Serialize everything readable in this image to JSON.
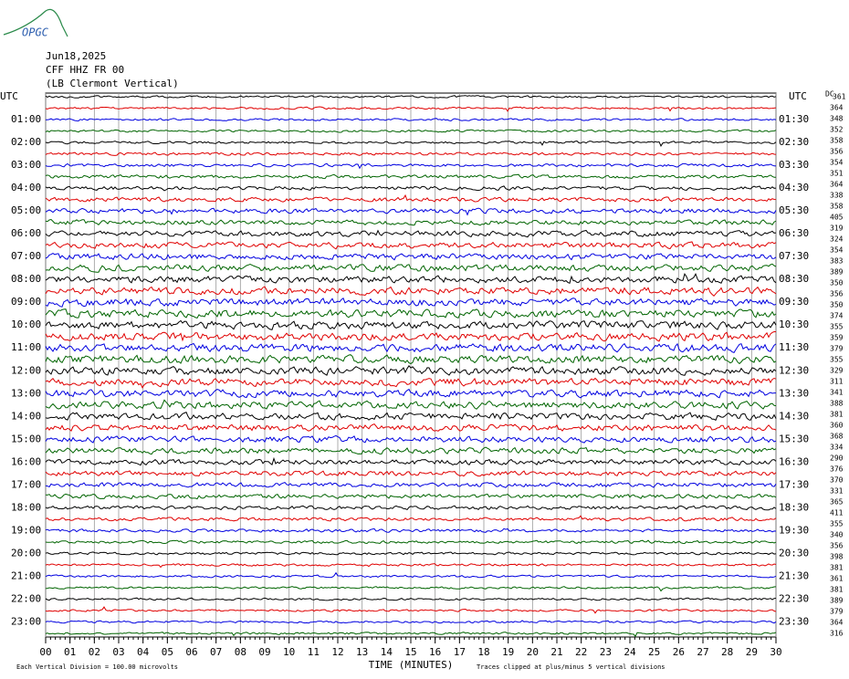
{
  "header": {
    "logo": "OPGC",
    "date": "Jun18,2025",
    "station": "CFF HHZ FR 00",
    "location": "(LB Clermont Vertical)"
  },
  "chart_data": {
    "type": "helicorder",
    "left_axis_title": "UTC",
    "right_axis_title": "UTC",
    "dc_title": "DC",
    "left_labels": [
      "01:00",
      "02:00",
      "03:00",
      "04:00",
      "05:00",
      "06:00",
      "07:00",
      "08:00",
      "09:00",
      "10:00",
      "11:00",
      "12:00",
      "13:00",
      "14:00",
      "15:00",
      "16:00",
      "17:00",
      "18:00",
      "19:00",
      "20:00",
      "21:00",
      "22:00",
      "23:00"
    ],
    "right_labels": [
      "01:30",
      "02:30",
      "03:30",
      "04:30",
      "05:30",
      "06:30",
      "07:30",
      "08:30",
      "09:30",
      "10:30",
      "11:30",
      "12:30",
      "13:30",
      "14:30",
      "15:30",
      "16:30",
      "17:30",
      "18:30",
      "19:30",
      "20:30",
      "21:30",
      "22:30",
      "23:30"
    ],
    "dc_values": [
      361,
      364,
      348,
      352,
      358,
      356,
      354,
      351,
      364,
      338,
      358,
      405,
      319,
      324,
      354,
      383,
      389,
      350,
      356,
      350,
      374,
      355,
      359,
      379,
      355,
      329,
      311,
      341,
      388,
      381,
      360,
      368,
      334,
      290,
      376,
      370,
      331,
      365,
      411,
      355,
      340,
      356,
      398,
      381,
      361,
      381,
      389,
      379,
      364,
      316
    ],
    "trace_colors": [
      "#000000",
      "#e00000",
      "#0000e0",
      "#006400"
    ],
    "xlim": [
      0,
      30
    ],
    "xticks": [
      {
        "value": 0,
        "label": "00"
      },
      {
        "value": 1,
        "label": "01"
      },
      {
        "value": 2,
        "label": "02"
      },
      {
        "value": 3,
        "label": "03"
      },
      {
        "value": 4,
        "label": "04"
      },
      {
        "value": 5,
        "label": "05"
      },
      {
        "value": 6,
        "label": "06"
      },
      {
        "value": 7,
        "label": "07"
      },
      {
        "value": 8,
        "label": "08"
      },
      {
        "value": 9,
        "label": "09"
      },
      10,
      11,
      12,
      13,
      14,
      15,
      16,
      17,
      18,
      19,
      20,
      21,
      22,
      23,
      24,
      25,
      26,
      27,
      28,
      29,
      30
    ],
    "x_label": "TIME (MINUTES)",
    "footer_left": "Each Vertical Division =  100.00 microvolts",
    "footer_right": "Traces clipped at plus/minus 5 vertical divisions"
  }
}
